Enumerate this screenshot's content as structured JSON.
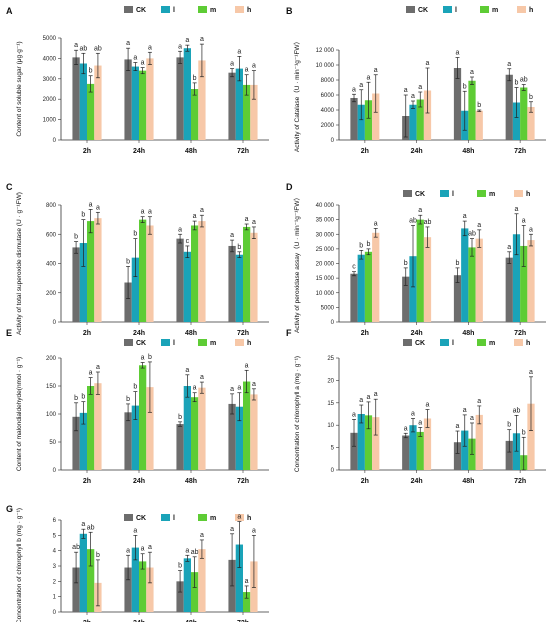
{
  "legend": {
    "entries": [
      "CK",
      "l",
      "m",
      "h"
    ],
    "colors": [
      "#6d6d6d",
      "#1aa3b8",
      "#5ecc35",
      "#f7c8a8"
    ]
  },
  "categories": [
    "2h",
    "24h",
    "48h",
    "72h"
  ],
  "chart_data": [
    {
      "panel": "A",
      "type": "bar",
      "ylabel": "Content of soluble sugar (μg·g⁻¹)",
      "ylim": [
        0,
        5000
      ],
      "yticks": [
        "0",
        "1000",
        "2000",
        "3000",
        "4000",
        "5000"
      ],
      "yticks_vals": [
        0,
        1000,
        2000,
        3000,
        4000,
        5000
      ],
      "categories": [
        "2h",
        "24h",
        "48h",
        "72h"
      ],
      "series": [
        {
          "name": "CK",
          "values": [
            4050,
            3950,
            4050,
            3300
          ],
          "err": [
            350,
            550,
            300,
            200
          ],
          "letters": [
            "a",
            "a",
            "a",
            "a"
          ]
        },
        {
          "name": "l",
          "values": [
            3750,
            3600,
            4500,
            3500
          ],
          "err": [
            500,
            200,
            150,
            600
          ],
          "letters": [
            "ab",
            "a",
            "a",
            "a"
          ]
        },
        {
          "name": "m",
          "values": [
            2750,
            3400,
            2500,
            2700
          ],
          "err": [
            400,
            150,
            300,
            500
          ],
          "letters": [
            "b",
            "a",
            "b",
            "a"
          ]
        },
        {
          "name": "h",
          "values": [
            3650,
            4000,
            3900,
            2700
          ],
          "err": [
            600,
            300,
            800,
            700
          ],
          "letters": [
            "ab",
            "a",
            "a",
            "a"
          ]
        }
      ]
    },
    {
      "panel": "B",
      "type": "bar",
      "ylabel": "Activity of Catalase（U · min⁻¹g⁻¹FW）",
      "ylim": [
        0,
        12000
      ],
      "yticks": [
        "0",
        "2000",
        "4000",
        "6000",
        "8000",
        "10 000",
        "12 000"
      ],
      "yticks_vals": [
        0,
        2000,
        4000,
        6000,
        8000,
        10000,
        12000
      ],
      "categories": [
        "2h",
        "24h",
        "48h",
        "72h"
      ],
      "series": [
        {
          "name": "CK",
          "values": [
            5600,
            3200,
            9600,
            8700
          ],
          "err": [
            500,
            2800,
            1400,
            800
          ],
          "letters": [
            "a",
            "a",
            "a",
            "a"
          ]
        },
        {
          "name": "l",
          "values": [
            4700,
            4700,
            3900,
            5000
          ],
          "err": [
            2000,
            500,
            2600,
            2000
          ],
          "letters": [
            "a",
            "a",
            "b",
            "b"
          ]
        },
        {
          "name": "m",
          "values": [
            5300,
            5400,
            7900,
            7000
          ],
          "err": [
            2400,
            1000,
            500,
            400
          ],
          "letters": [
            "a",
            "a",
            "a",
            "ab"
          ]
        },
        {
          "name": "h",
          "values": [
            6200,
            6600,
            3900,
            4400
          ],
          "err": [
            2500,
            3000,
            100,
            700
          ],
          "letters": [
            "a",
            "a",
            "b",
            "b"
          ]
        }
      ]
    },
    {
      "panel": "C",
      "type": "bar",
      "ylabel": "Activity of total superoxide dismutase (U · g⁻¹FW)",
      "ylim": [
        0,
        800
      ],
      "yticks": [
        "0",
        "200",
        "400",
        "600",
        "800"
      ],
      "yticks_vals": [
        0,
        200,
        400,
        600,
        800
      ],
      "categories": [
        "2h",
        "24h",
        "48h",
        "72h"
      ],
      "series": [
        {
          "name": "CK",
          "values": [
            510,
            270,
            570,
            520
          ],
          "err": [
            40,
            110,
            30,
            40
          ],
          "letters": [
            "b",
            "b",
            "a",
            "a"
          ]
        },
        {
          "name": "l",
          "values": [
            540,
            440,
            480,
            460
          ],
          "err": [
            160,
            130,
            40,
            20
          ],
          "letters": [
            "b",
            "b",
            "c",
            "b"
          ]
        },
        {
          "name": "m",
          "values": [
            690,
            700,
            660,
            650
          ],
          "err": [
            80,
            20,
            30,
            20
          ],
          "letters": [
            "a",
            "a",
            "a",
            "a"
          ]
        },
        {
          "name": "h",
          "values": [
            710,
            660,
            690,
            610
          ],
          "err": [
            40,
            60,
            40,
            40
          ],
          "letters": [
            "a",
            "a",
            "a",
            "a"
          ]
        }
      ]
    },
    {
      "panel": "D",
      "type": "bar",
      "ylabel": "Activity of peroxidase assay（U · min⁻¹g⁻¹FW）",
      "ylim": [
        0,
        40000
      ],
      "yticks": [
        "0",
        "5000",
        "10 000",
        "15 000",
        "20 000",
        "25 000",
        "30 000",
        "35 000",
        "40 000"
      ],
      "yticks_vals": [
        0,
        5000,
        10000,
        15000,
        20000,
        25000,
        30000,
        35000,
        40000
      ],
      "categories": [
        "2h",
        "24h",
        "48h",
        "72h"
      ],
      "series": [
        {
          "name": "CK",
          "values": [
            16500,
            15500,
            16000,
            22000
          ],
          "err": [
            700,
            3000,
            2500,
            2000
          ],
          "letters": [
            "c",
            "b",
            "b",
            "a"
          ]
        },
        {
          "name": "l",
          "values": [
            23000,
            22500,
            32000,
            30000
          ],
          "err": [
            1500,
            10500,
            2500,
            7000
          ],
          "letters": [
            "b",
            "ab",
            "a",
            "a"
          ]
        },
        {
          "name": "m",
          "values": [
            24000,
            35000,
            25500,
            26000
          ],
          "err": [
            1000,
            1500,
            3000,
            7000
          ],
          "letters": [
            "b",
            "a",
            "ab",
            "a"
          ]
        },
        {
          "name": "h",
          "values": [
            30500,
            29000,
            28500,
            28000
          ],
          "err": [
            1500,
            3500,
            3000,
            2000
          ],
          "letters": [
            "a",
            "ab",
            "a",
            "a"
          ]
        }
      ]
    },
    {
      "panel": "E",
      "type": "bar",
      "ylabel": "Content of malondialdehyde(nmol · g⁻¹)",
      "ylim": [
        0,
        200
      ],
      "yticks": [
        "0",
        "50",
        "100",
        "150",
        "200"
      ],
      "yticks_vals": [
        0,
        50,
        100,
        150,
        200
      ],
      "categories": [
        "2h",
        "24h",
        "48h",
        "72h"
      ],
      "series": [
        {
          "name": "CK",
          "values": [
            95,
            103,
            82,
            118
          ],
          "err": [
            25,
            15,
            4,
            18
          ],
          "letters": [
            "b",
            "b",
            "b",
            "a"
          ]
        },
        {
          "name": "l",
          "values": [
            102,
            115,
            150,
            113
          ],
          "err": [
            20,
            25,
            20,
            25
          ],
          "letters": [
            "b",
            "b",
            "a",
            "a"
          ]
        },
        {
          "name": "m",
          "values": [
            150,
            187,
            130,
            158
          ],
          "err": [
            15,
            5,
            8,
            20
          ],
          "letters": [
            "a",
            "a",
            "a",
            "a"
          ]
        },
        {
          "name": "h",
          "values": [
            155,
            148,
            147,
            135
          ],
          "err": [
            20,
            45,
            10,
            10
          ],
          "letters": [
            "a",
            "b",
            "a",
            "a"
          ]
        }
      ]
    },
    {
      "panel": "F",
      "type": "bar",
      "ylabel": "Concentration of chlorophyll a (mg · g⁻¹)",
      "ylim": [
        0,
        25
      ],
      "yticks": [
        "0",
        "5",
        "10",
        "15",
        "20",
        "25"
      ],
      "yticks_vals": [
        0,
        5,
        10,
        15,
        20,
        25
      ],
      "categories": [
        "2h",
        "24h",
        "48h",
        "72h"
      ],
      "series": [
        {
          "name": "CK",
          "values": [
            8.3,
            7.7,
            6.2,
            6.5
          ],
          "err": [
            3,
            0.5,
            2.5,
            2.5
          ],
          "letters": [
            "a",
            "a",
            "a",
            "b"
          ]
        },
        {
          "name": "l",
          "values": [
            12.5,
            10.0,
            8.8,
            8.2
          ],
          "err": [
            2,
            1.5,
            3.5,
            4
          ],
          "letters": [
            "a",
            "a",
            "a",
            "ab"
          ]
        },
        {
          "name": "m",
          "values": [
            12.2,
            8.5,
            7.0,
            3.3
          ],
          "err": [
            3,
            1,
            3.5,
            4
          ],
          "letters": [
            "a",
            "a",
            "a",
            "b"
          ]
        },
        {
          "name": "h",
          "values": [
            11.8,
            11.5,
            12.3,
            14.8
          ],
          "err": [
            4,
            2,
            2,
            6
          ],
          "letters": [
            "a",
            "a",
            "a",
            "a"
          ]
        }
      ]
    },
    {
      "panel": "G",
      "type": "bar",
      "ylabel": "Concentration of chlorophyll b (mg · g⁻¹)",
      "ylim": [
        0,
        6
      ],
      "yticks": [
        "0",
        "1",
        "2",
        "3",
        "4",
        "5",
        "6"
      ],
      "yticks_vals": [
        0,
        1,
        2,
        3,
        4,
        5,
        6
      ],
      "categories": [
        "2h",
        "24h",
        "48h",
        "72h"
      ],
      "series": [
        {
          "name": "CK",
          "values": [
            2.9,
            2.9,
            2.0,
            3.4
          ],
          "err": [
            1,
            0.8,
            0.7,
            1.7
          ],
          "letters": [
            "ab",
            "a",
            "b",
            "a"
          ]
        },
        {
          "name": "l",
          "values": [
            5.1,
            4.2,
            3.5,
            4.4
          ],
          "err": [
            0.3,
            0.8,
            0.2,
            1.5
          ],
          "letters": [
            "a",
            "a",
            "a",
            "a"
          ]
        },
        {
          "name": "m",
          "values": [
            4.1,
            3.3,
            2.6,
            1.3
          ],
          "err": [
            1.1,
            0.5,
            1,
            0.4
          ],
          "letters": [
            "ab",
            "a",
            "ab",
            "a"
          ]
        },
        {
          "name": "h",
          "values": [
            1.9,
            2.9,
            4.1,
            3.3
          ],
          "err": [
            1.5,
            1,
            0.6,
            1.7
          ],
          "letters": [
            "b",
            "a",
            "a",
            "a"
          ]
        }
      ]
    }
  ]
}
